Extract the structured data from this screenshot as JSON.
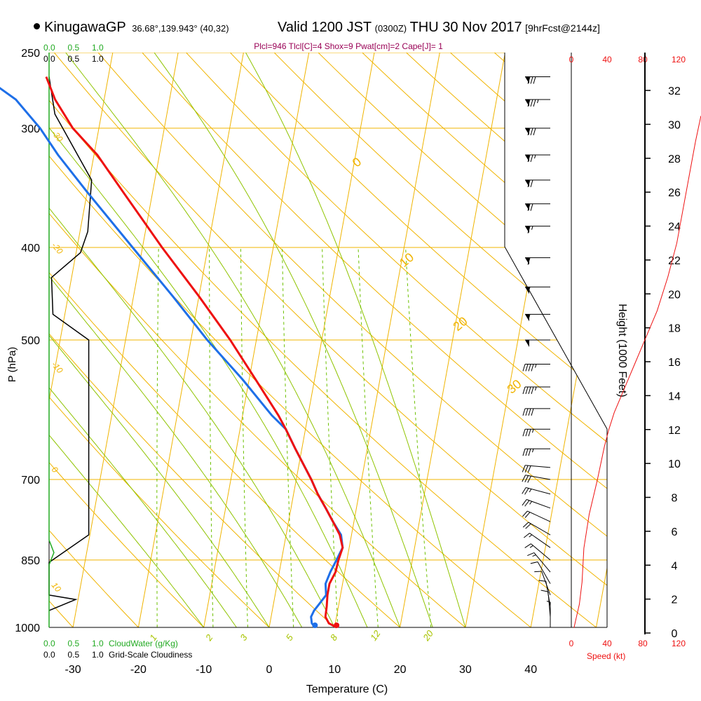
{
  "header": {
    "station": "KinugawaGP",
    "coords": "36.68°,139.943° (40,32)",
    "valid": "Valid 1200 JST",
    "utc": "(0300Z)",
    "date": "THU 30 Nov 2017",
    "forecast": "[9hrFcst@2144z]"
  },
  "indices": "Plcl=946 Tlcl[C]=4 Shox=9 Pwat[cm]=2 Cape[J]= 1",
  "colors": {
    "isobar": "#f0b400",
    "dry_adiabat": "#f0b400",
    "moist_adiabat": "#8fc400",
    "mixing_ratio": "#6cc000",
    "temperature": "#ee1111",
    "dewpoint": "#1e6fe8",
    "cloud_water": "#22aa22",
    "speed": "#ee1111",
    "header_indices": "#990055"
  },
  "chart_data": {
    "type": "skew-t log-p sounding",
    "xlabel": "Temperature (C)",
    "ylabel": "P (hPa)",
    "x_ticks": [
      -30,
      -20,
      -10,
      0,
      10,
      20,
      30,
      40
    ],
    "pressure_ticks": [
      250,
      300,
      400,
      500,
      700,
      850,
      1000
    ],
    "pressure_range": [
      1000,
      250
    ],
    "isotherm_labels": [
      0,
      10,
      20,
      30
    ],
    "mixing_ratio_labels": [
      "1",
      "2",
      "3",
      "5",
      "8",
      "12",
      "20"
    ],
    "dry_adiabat_labels": [
      "-30",
      "-20",
      "-10",
      "0",
      "10",
      "20"
    ],
    "temperature": [
      {
        "p": 1000,
        "t": 10.3
      },
      {
        "p": 990,
        "t": 9.0
      },
      {
        "p": 975,
        "t": 8.3
      },
      {
        "p": 950,
        "t": 8.2
      },
      {
        "p": 925,
        "t": 8.0
      },
      {
        "p": 900,
        "t": 8.0
      },
      {
        "p": 875,
        "t": 8.6
      },
      {
        "p": 850,
        "t": 8.7
      },
      {
        "p": 825,
        "t": 9.0
      },
      {
        "p": 800,
        "t": 8.2
      },
      {
        "p": 775,
        "t": 6.8
      },
      {
        "p": 750,
        "t": 5.3
      },
      {
        "p": 725,
        "t": 3.7
      },
      {
        "p": 700,
        "t": 2.3
      },
      {
        "p": 650,
        "t": -1.0
      },
      {
        "p": 620,
        "t": -3.0
      },
      {
        "p": 600,
        "t": -4.5
      },
      {
        "p": 550,
        "t": -9.0
      },
      {
        "p": 500,
        "t": -14.0
      },
      {
        "p": 450,
        "t": -20.0
      },
      {
        "p": 400,
        "t": -27.0
      },
      {
        "p": 350,
        "t": -34.5
      },
      {
        "p": 320,
        "t": -39.5
      },
      {
        "p": 300,
        "t": -44.0
      },
      {
        "p": 280,
        "t": -47.5
      },
      {
        "p": 265,
        "t": -49.5
      }
    ],
    "dewpoint": [
      {
        "p": 1000,
        "t": 7.0
      },
      {
        "p": 990,
        "t": 6.4
      },
      {
        "p": 975,
        "t": 6.1
      },
      {
        "p": 960,
        "t": 6.4
      },
      {
        "p": 950,
        "t": 6.8
      },
      {
        "p": 925,
        "t": 7.8
      },
      {
        "p": 900,
        "t": 7.4
      },
      {
        "p": 875,
        "t": 7.8
      },
      {
        "p": 850,
        "t": 8.4
      },
      {
        "p": 825,
        "t": 9.0
      },
      {
        "p": 800,
        "t": 8.4
      },
      {
        "p": 775,
        "t": 6.8
      },
      {
        "p": 750,
        "t": 5.3
      },
      {
        "p": 725,
        "t": 3.7
      },
      {
        "p": 700,
        "t": 2.3
      },
      {
        "p": 650,
        "t": -1.0
      },
      {
        "p": 620,
        "t": -3.0
      },
      {
        "p": 600,
        "t": -5.5
      },
      {
        "p": 550,
        "t": -11.0
      },
      {
        "p": 500,
        "t": -17.5
      },
      {
        "p": 450,
        "t": -24.0
      },
      {
        "p": 400,
        "t": -31.5
      },
      {
        "p": 350,
        "t": -40.0
      },
      {
        "p": 320,
        "t": -45.5
      },
      {
        "p": 300,
        "t": -49.0
      },
      {
        "p": 280,
        "t": -53.5
      },
      {
        "p": 265,
        "t": -59.0
      }
    ],
    "cloud_water_axis": {
      "label": "CloudWater (g/Kg)",
      "ticks": [
        "0.0",
        "0.5",
        "1.0"
      ]
    },
    "cloudiness_axis": {
      "label": "Grid-Scale Cloudiness",
      "ticks": [
        "0.0",
        "0.5",
        "1.0"
      ]
    },
    "cloudiness": [
      {
        "p": 265,
        "v": 0.0
      },
      {
        "p": 290,
        "v": 0.12
      },
      {
        "p": 340,
        "v": 0.88
      },
      {
        "p": 385,
        "v": 0.8
      },
      {
        "p": 405,
        "v": 0.65
      },
      {
        "p": 430,
        "v": 0.05
      },
      {
        "p": 470,
        "v": 0.08
      },
      {
        "p": 500,
        "v": 0.82
      },
      {
        "p": 800,
        "v": 0.82
      },
      {
        "p": 855,
        "v": 0.0
      },
      {
        "p": 925,
        "v": 0.0
      },
      {
        "p": 935,
        "v": 0.55
      },
      {
        "p": 960,
        "v": 0.0
      }
    ],
    "cloud_water": [
      {
        "p": 250,
        "v": 0.0
      },
      {
        "p": 810,
        "v": 0.0
      },
      {
        "p": 835,
        "v": 0.1
      },
      {
        "p": 860,
        "v": 0.0
      },
      {
        "p": 1000,
        "v": 0.0
      }
    ],
    "speed_axis": {
      "label": "Speed (kt)",
      "ticks": [
        0,
        40,
        80,
        120
      ]
    },
    "height_axis": {
      "label": "Height (1000 Feet)",
      "ticks": [
        0,
        2,
        4,
        6,
        8,
        10,
        12,
        14,
        16,
        18,
        20,
        22,
        24,
        26,
        28,
        30,
        32
      ]
    },
    "wind_speed_profile": [
      {
        "h": 0.3,
        "s": 3
      },
      {
        "h": 1.0,
        "s": 6
      },
      {
        "h": 1.7,
        "s": 9
      },
      {
        "h": 3.0,
        "s": 12
      },
      {
        "h": 5.0,
        "s": 14
      },
      {
        "h": 7.0,
        "s": 20
      },
      {
        "h": 9.0,
        "s": 29
      },
      {
        "h": 10.0,
        "s": 33
      },
      {
        "h": 11.0,
        "s": 37
      },
      {
        "h": 12.0,
        "s": 42
      },
      {
        "h": 13.0,
        "s": 48
      },
      {
        "h": 14.0,
        "s": 56
      },
      {
        "h": 15.0,
        "s": 64
      },
      {
        "h": 16.0,
        "s": 72
      },
      {
        "h": 17.0,
        "s": 80
      },
      {
        "h": 18.0,
        "s": 88
      },
      {
        "h": 19.0,
        "s": 96
      },
      {
        "h": 21.0,
        "s": 108
      },
      {
        "h": 23.0,
        "s": 118
      },
      {
        "h": 25.0,
        "s": 125
      },
      {
        "h": 27.0,
        "s": 132
      },
      {
        "h": 29.0,
        "s": 139
      },
      {
        "h": 30.5,
        "s": 145
      }
    ],
    "wind_barbs": [
      {
        "p": 265,
        "dir": 270,
        "kt": 80
      },
      {
        "p": 280,
        "dir": 270,
        "kt": 85
      },
      {
        "p": 300,
        "dir": 270,
        "kt": 80
      },
      {
        "p": 320,
        "dir": 270,
        "kt": 75
      },
      {
        "p": 340,
        "dir": 270,
        "kt": 70
      },
      {
        "p": 360,
        "dir": 270,
        "kt": 70
      },
      {
        "p": 380,
        "dir": 270,
        "kt": 65
      },
      {
        "p": 410,
        "dir": 270,
        "kt": 60
      },
      {
        "p": 440,
        "dir": 270,
        "kt": 55
      },
      {
        "p": 470,
        "dir": 270,
        "kt": 55
      },
      {
        "p": 500,
        "dir": 270,
        "kt": 50
      },
      {
        "p": 530,
        "dir": 270,
        "kt": 45
      },
      {
        "p": 560,
        "dir": 270,
        "kt": 45
      },
      {
        "p": 590,
        "dir": 270,
        "kt": 40
      },
      {
        "p": 620,
        "dir": 270,
        "kt": 35
      },
      {
        "p": 650,
        "dir": 270,
        "kt": 35
      },
      {
        "p": 680,
        "dir": 275,
        "kt": 30
      },
      {
        "p": 700,
        "dir": 280,
        "kt": 30
      },
      {
        "p": 725,
        "dir": 285,
        "kt": 25
      },
      {
        "p": 750,
        "dir": 290,
        "kt": 25
      },
      {
        "p": 775,
        "dir": 295,
        "kt": 20
      },
      {
        "p": 800,
        "dir": 300,
        "kt": 20
      },
      {
        "p": 825,
        "dir": 305,
        "kt": 15
      },
      {
        "p": 850,
        "dir": 310,
        "kt": 15
      },
      {
        "p": 875,
        "dir": 320,
        "kt": 15
      },
      {
        "p": 900,
        "dir": 330,
        "kt": 10
      },
      {
        "p": 925,
        "dir": 340,
        "kt": 10
      },
      {
        "p": 950,
        "dir": 350,
        "kt": 10
      },
      {
        "p": 975,
        "dir": 355,
        "kt": 10
      },
      {
        "p": 1000,
        "dir": 360,
        "kt": 5
      }
    ]
  }
}
